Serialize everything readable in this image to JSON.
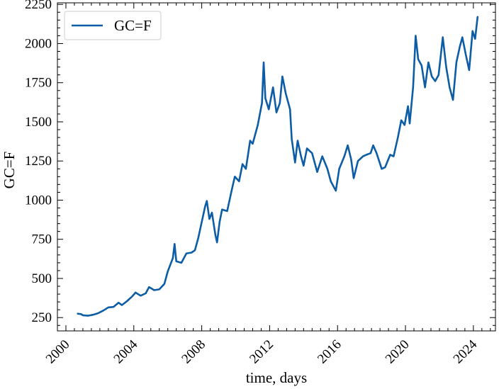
{
  "chart_data": {
    "type": "line",
    "xlabel": "time, days",
    "ylabel": "GC=F",
    "xlim": [
      1999.5,
      2025.3
    ],
    "ylim": [
      165,
      2260
    ],
    "x_ticks": [
      2000,
      2004,
      2008,
      2012,
      2016,
      2020,
      2024
    ],
    "x_tick_labels": [
      "2000",
      "2004",
      "2008",
      "2012",
      "2016",
      "2020",
      "2024"
    ],
    "y_ticks": [
      250,
      500,
      750,
      1000,
      1250,
      1500,
      1750,
      2000,
      2250
    ],
    "y_tick_labels": [
      "250",
      "500",
      "750",
      "1000",
      "1250",
      "1500",
      "1750",
      "2000",
      "2250"
    ],
    "x_tick_rotation_deg": 45,
    "minor_ticks": true,
    "ticks_direction": "in",
    "ticks_all_sides": true,
    "grid": false,
    "legend_position": "top-left",
    "colors": {
      "series": "#0c5da5",
      "axes": "#000000",
      "background": "#ffffff"
    },
    "series": [
      {
        "name": "GC=F",
        "points": [
          [
            2000.7,
            275
          ],
          [
            2000.9,
            272
          ],
          [
            2001.0,
            265
          ],
          [
            2001.3,
            262
          ],
          [
            2001.6,
            268
          ],
          [
            2001.9,
            278
          ],
          [
            2002.2,
            295
          ],
          [
            2002.5,
            315
          ],
          [
            2002.8,
            318
          ],
          [
            2003.1,
            345
          ],
          [
            2003.3,
            330
          ],
          [
            2003.6,
            355
          ],
          [
            2003.9,
            385
          ],
          [
            2004.1,
            410
          ],
          [
            2004.4,
            390
          ],
          [
            2004.7,
            405
          ],
          [
            2004.9,
            445
          ],
          [
            2005.2,
            425
          ],
          [
            2005.5,
            430
          ],
          [
            2005.8,
            465
          ],
          [
            2006.0,
            545
          ],
          [
            2006.3,
            630
          ],
          [
            2006.4,
            720
          ],
          [
            2006.5,
            610
          ],
          [
            2006.8,
            600
          ],
          [
            2007.1,
            660
          ],
          [
            2007.4,
            665
          ],
          [
            2007.6,
            680
          ],
          [
            2007.8,
            760
          ],
          [
            2008.0,
            860
          ],
          [
            2008.2,
            960
          ],
          [
            2008.3,
            995
          ],
          [
            2008.45,
            880
          ],
          [
            2008.6,
            920
          ],
          [
            2008.8,
            780
          ],
          [
            2008.9,
            730
          ],
          [
            2009.05,
            860
          ],
          [
            2009.2,
            940
          ],
          [
            2009.5,
            930
          ],
          [
            2009.8,
            1080
          ],
          [
            2009.95,
            1150
          ],
          [
            2010.2,
            1120
          ],
          [
            2010.4,
            1230
          ],
          [
            2010.6,
            1200
          ],
          [
            2010.85,
            1380
          ],
          [
            2011.0,
            1360
          ],
          [
            2011.3,
            1480
          ],
          [
            2011.55,
            1620
          ],
          [
            2011.65,
            1880
          ],
          [
            2011.75,
            1650
          ],
          [
            2011.95,
            1580
          ],
          [
            2012.2,
            1720
          ],
          [
            2012.4,
            1560
          ],
          [
            2012.6,
            1620
          ],
          [
            2012.75,
            1790
          ],
          [
            2012.95,
            1680
          ],
          [
            2013.2,
            1580
          ],
          [
            2013.3,
            1390
          ],
          [
            2013.5,
            1240
          ],
          [
            2013.65,
            1380
          ],
          [
            2013.85,
            1280
          ],
          [
            2014.0,
            1220
          ],
          [
            2014.2,
            1330
          ],
          [
            2014.5,
            1300
          ],
          [
            2014.8,
            1180
          ],
          [
            2015.1,
            1280
          ],
          [
            2015.4,
            1200
          ],
          [
            2015.6,
            1120
          ],
          [
            2015.9,
            1060
          ],
          [
            2016.1,
            1200
          ],
          [
            2016.4,
            1280
          ],
          [
            2016.6,
            1350
          ],
          [
            2016.8,
            1260
          ],
          [
            2016.95,
            1140
          ],
          [
            2017.2,
            1250
          ],
          [
            2017.5,
            1280
          ],
          [
            2017.7,
            1290
          ],
          [
            2017.95,
            1300
          ],
          [
            2018.1,
            1350
          ],
          [
            2018.3,
            1300
          ],
          [
            2018.6,
            1200
          ],
          [
            2018.8,
            1210
          ],
          [
            2019.1,
            1290
          ],
          [
            2019.3,
            1280
          ],
          [
            2019.55,
            1400
          ],
          [
            2019.75,
            1510
          ],
          [
            2019.95,
            1480
          ],
          [
            2020.15,
            1600
          ],
          [
            2020.25,
            1490
          ],
          [
            2020.45,
            1720
          ],
          [
            2020.6,
            2050
          ],
          [
            2020.75,
            1900
          ],
          [
            2020.95,
            1860
          ],
          [
            2021.15,
            1720
          ],
          [
            2021.35,
            1880
          ],
          [
            2021.55,
            1790
          ],
          [
            2021.75,
            1760
          ],
          [
            2021.95,
            1800
          ],
          [
            2022.2,
            2040
          ],
          [
            2022.4,
            1850
          ],
          [
            2022.6,
            1720
          ],
          [
            2022.8,
            1640
          ],
          [
            2023.0,
            1880
          ],
          [
            2023.2,
            1980
          ],
          [
            2023.35,
            2040
          ],
          [
            2023.55,
            1930
          ],
          [
            2023.75,
            1830
          ],
          [
            2023.95,
            2080
          ],
          [
            2024.1,
            2030
          ],
          [
            2024.25,
            2170
          ]
        ]
      }
    ]
  }
}
